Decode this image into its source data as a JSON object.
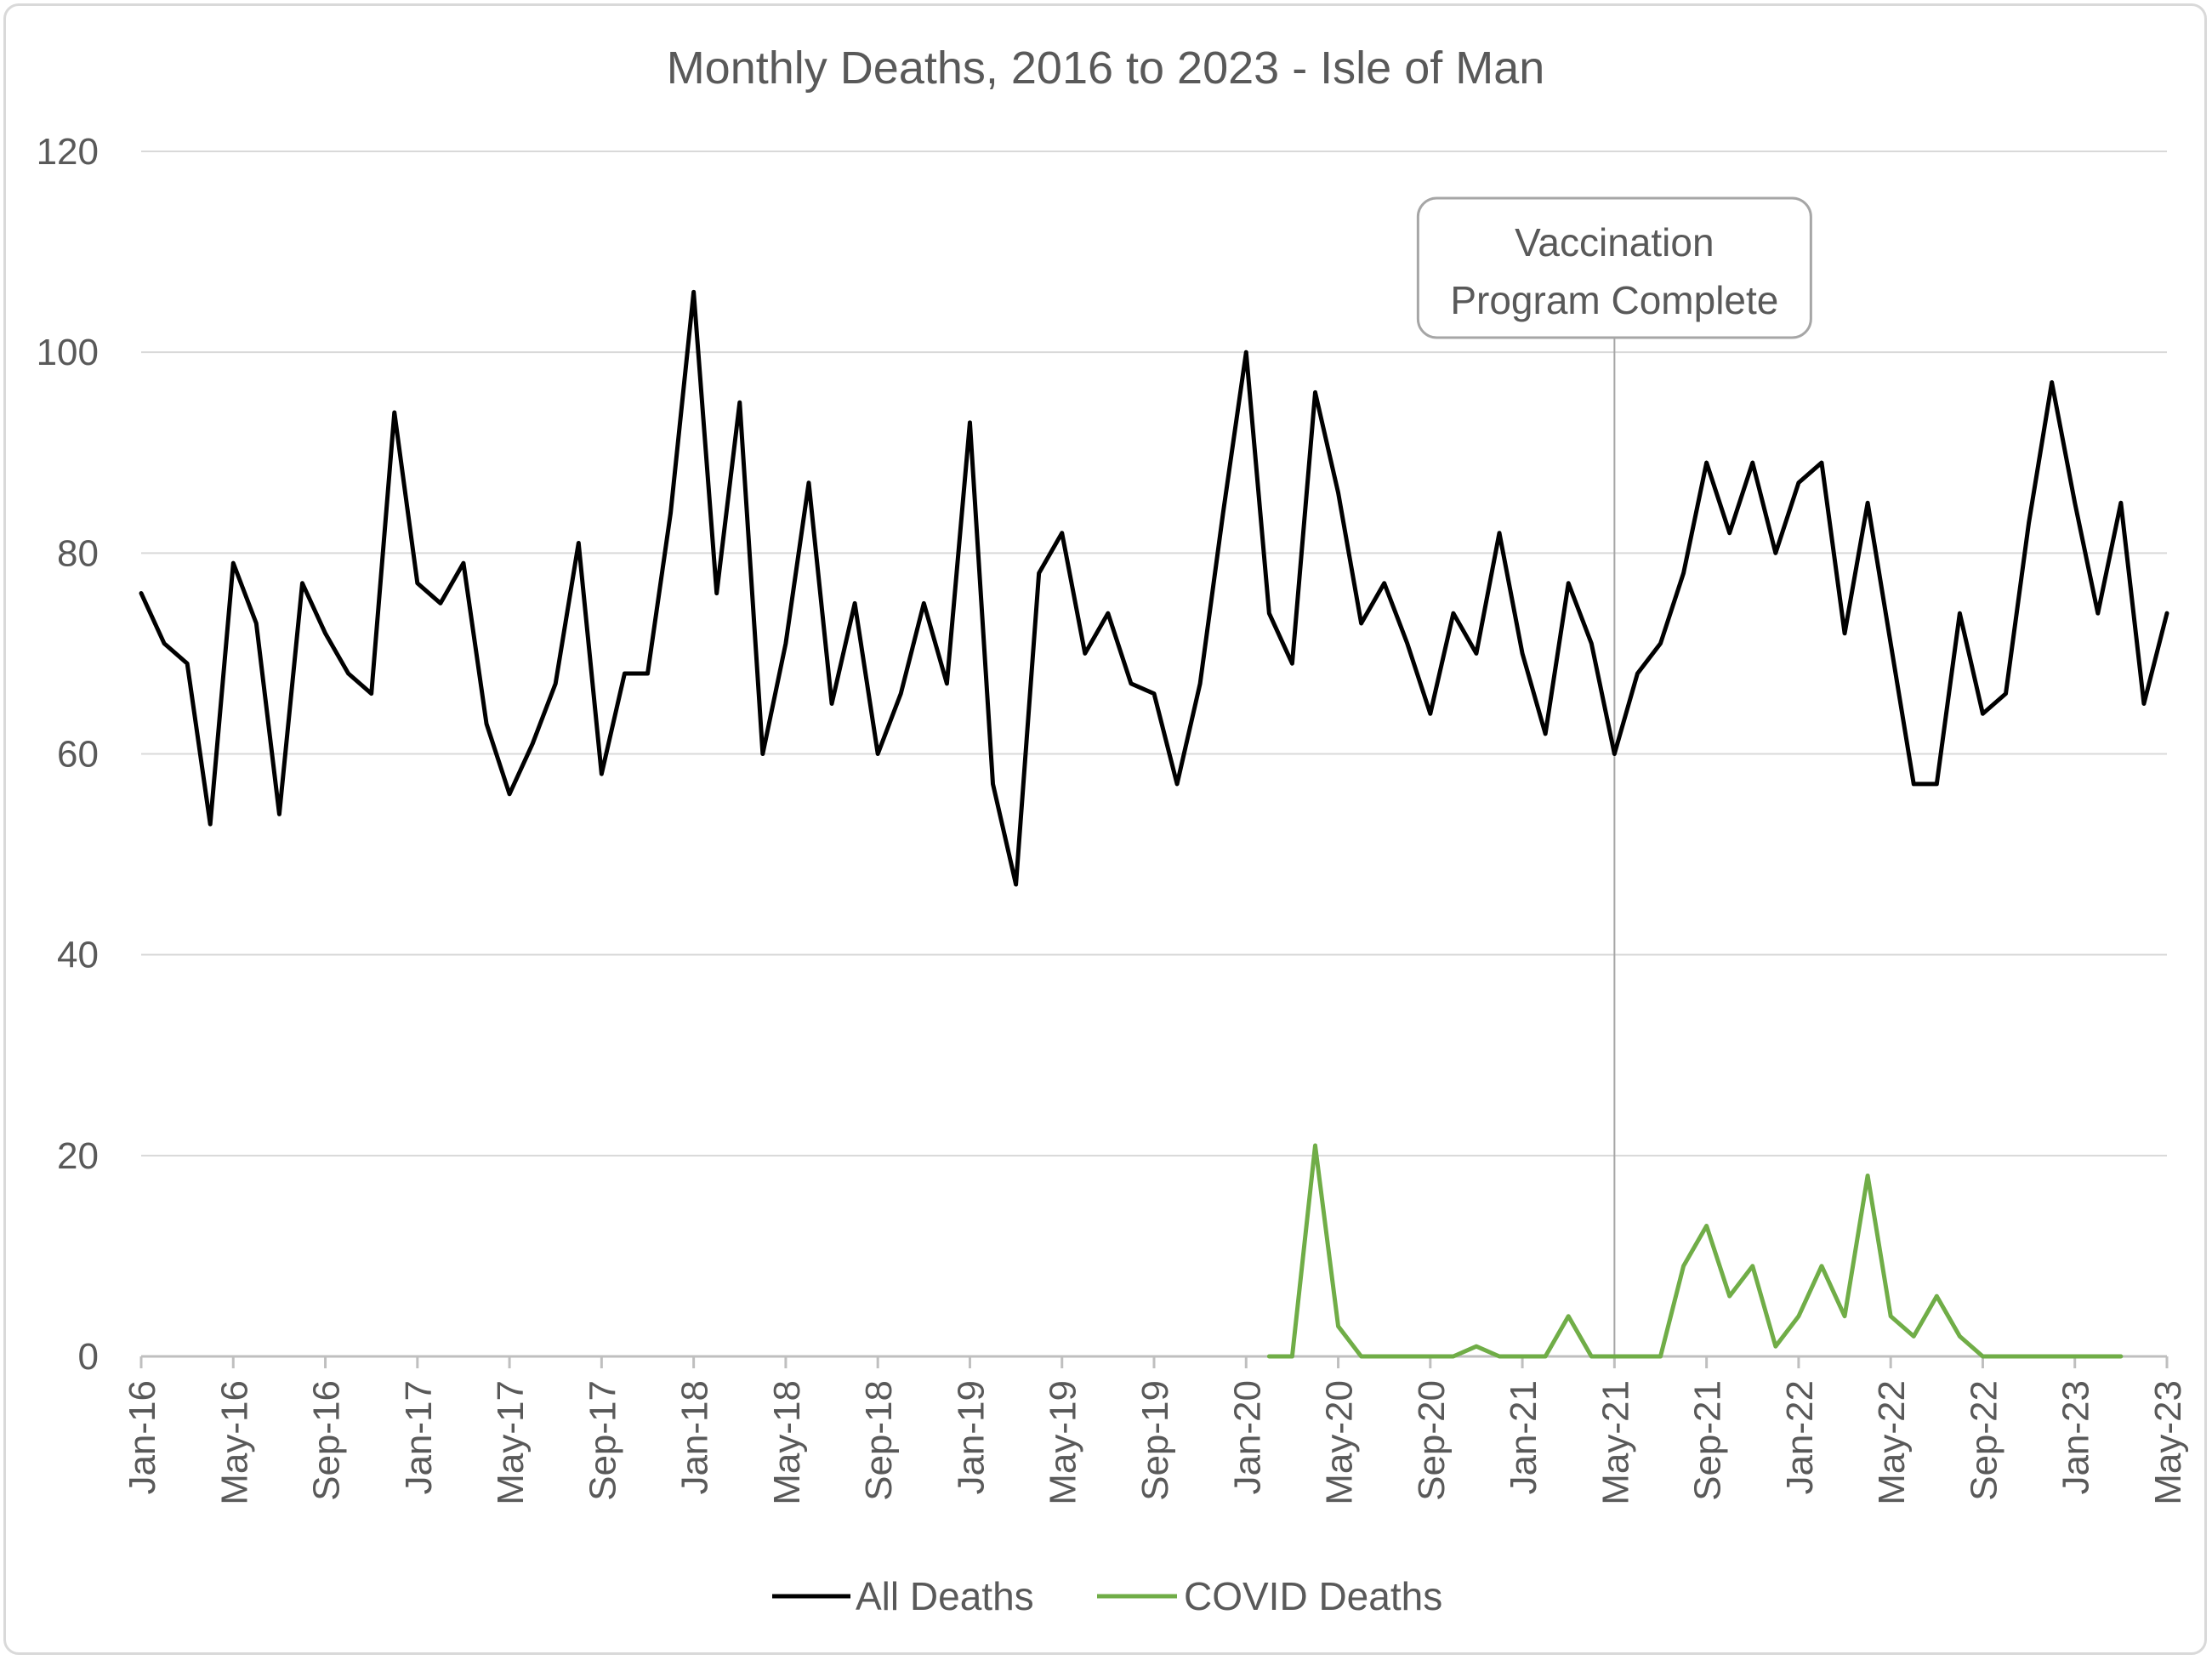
{
  "chart_data": {
    "type": "line",
    "title": "Monthly Deaths, 2016 to 2023 - Isle of Man",
    "xlabel": "",
    "ylabel": "",
    "ylim": [
      0,
      120
    ],
    "yticks": [
      0,
      20,
      40,
      60,
      80,
      100,
      120
    ],
    "grid": true,
    "legend_position": "bottom",
    "x_start": "Jan-16",
    "x_tick_labels": [
      "Jan-16",
      "May-16",
      "Sep-16",
      "Jan-17",
      "May-17",
      "Sep-17",
      "Jan-18",
      "May-18",
      "Sep-18",
      "Jan-19",
      "May-19",
      "Sep-19",
      "Jan-20",
      "May-20",
      "Sep-20",
      "Jan-21",
      "May-21",
      "Sep-21",
      "Jan-22",
      "May-22",
      "Sep-22",
      "Jan-23",
      "May-23"
    ],
    "x": [
      "Jan-16",
      "Feb-16",
      "Mar-16",
      "Apr-16",
      "May-16",
      "Jun-16",
      "Jul-16",
      "Aug-16",
      "Sep-16",
      "Oct-16",
      "Nov-16",
      "Dec-16",
      "Jan-17",
      "Feb-17",
      "Mar-17",
      "Apr-17",
      "May-17",
      "Jun-17",
      "Jul-17",
      "Aug-17",
      "Sep-17",
      "Oct-17",
      "Nov-17",
      "Dec-17",
      "Jan-18",
      "Feb-18",
      "Mar-18",
      "Apr-18",
      "May-18",
      "Jun-18",
      "Jul-18",
      "Aug-18",
      "Sep-18",
      "Oct-18",
      "Nov-18",
      "Dec-18",
      "Jan-19",
      "Feb-19",
      "Mar-19",
      "Apr-19",
      "May-19",
      "Jun-19",
      "Jul-19",
      "Aug-19",
      "Sep-19",
      "Oct-19",
      "Nov-19",
      "Dec-19",
      "Jan-20",
      "Feb-20",
      "Mar-20",
      "Apr-20",
      "May-20",
      "Jun-20",
      "Jul-20",
      "Aug-20",
      "Sep-20",
      "Oct-20",
      "Nov-20",
      "Dec-20",
      "Jan-21",
      "Feb-21",
      "Mar-21",
      "Apr-21",
      "May-21",
      "Jun-21",
      "Jul-21",
      "Aug-21",
      "Sep-21",
      "Oct-21",
      "Nov-21",
      "Dec-21",
      "Jan-22",
      "Feb-22",
      "Mar-22",
      "Apr-22",
      "May-22",
      "Jun-22",
      "Jul-22",
      "Aug-22",
      "Sep-22",
      "Oct-22",
      "Nov-22",
      "Dec-22",
      "Jan-23",
      "Feb-23",
      "Mar-23",
      "Apr-23",
      "May-23"
    ],
    "series": [
      {
        "name": "All Deaths",
        "color": "#000000",
        "values": [
          76,
          71,
          69,
          53,
          79,
          73,
          54,
          77,
          72,
          68,
          66,
          94,
          77,
          75,
          79,
          63,
          56,
          61,
          67,
          81,
          58,
          68,
          68,
          84,
          106,
          76,
          95,
          60,
          71,
          87,
          65,
          75,
          60,
          66,
          75,
          67,
          93,
          57,
          47,
          78,
          82,
          70,
          74,
          67,
          66,
          57,
          67,
          84,
          100,
          74,
          69,
          96,
          86,
          73,
          77,
          71,
          64,
          74,
          70,
          82,
          70,
          62,
          77,
          71,
          60,
          68,
          71,
          78,
          89,
          82,
          89,
          80,
          87,
          89,
          72,
          85,
          71,
          57,
          57,
          74,
          64,
          66,
          83,
          97,
          85,
          74,
          85,
          65,
          74
        ]
      },
      {
        "name": "COVID Deaths",
        "color": "#70ad47",
        "values": [
          null,
          null,
          null,
          null,
          null,
          null,
          null,
          null,
          null,
          null,
          null,
          null,
          null,
          null,
          null,
          null,
          null,
          null,
          null,
          null,
          null,
          null,
          null,
          null,
          null,
          null,
          null,
          null,
          null,
          null,
          null,
          null,
          null,
          null,
          null,
          null,
          null,
          null,
          null,
          null,
          null,
          null,
          null,
          null,
          null,
          null,
          null,
          null,
          null,
          0,
          0,
          21,
          3,
          0,
          0,
          0,
          0,
          0,
          1,
          0,
          0,
          0,
          4,
          0,
          0,
          0,
          0,
          9,
          13,
          6,
          9,
          1,
          4,
          9,
          4,
          18,
          4,
          2,
          6,
          2,
          0,
          0,
          0,
          0,
          0,
          0,
          0,
          null,
          null
        ]
      }
    ],
    "annotation": {
      "line1": "Vaccination",
      "line2": "Program Complete",
      "x": "May-21",
      "line_color": "#a6a6a6"
    },
    "colors": {
      "grid": "#d9d9d9",
      "axis": "#bfbfbf",
      "text": "#595959"
    }
  }
}
